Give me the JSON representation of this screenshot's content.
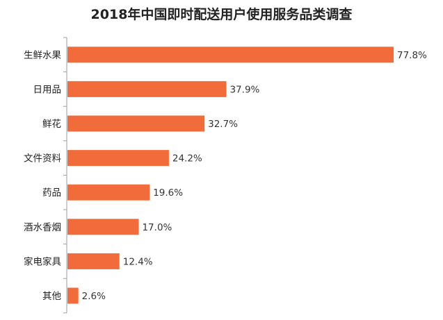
{
  "chart_data": {
    "type": "bar",
    "orientation": "horizontal",
    "title": "2018年中国即时配送用户使用服务品类调查",
    "categories": [
      "生鲜水果",
      "日用品",
      "鲜花",
      "文件资料",
      "药品",
      "酒水香烟",
      "家电家具",
      "其他"
    ],
    "values": [
      77.8,
      37.9,
      32.7,
      24.2,
      19.6,
      17.0,
      12.4,
      2.6
    ],
    "value_labels": [
      "77.8%",
      "37.9%",
      "32.7%",
      "24.2%",
      "19.6%",
      "17.0%",
      "12.4%",
      "2.6%"
    ],
    "unit": "%",
    "xlim": [
      0,
      80
    ],
    "grid": false,
    "legend": "none",
    "bar_color": "#F26B3A",
    "axis_color": "#9e9e9e"
  }
}
